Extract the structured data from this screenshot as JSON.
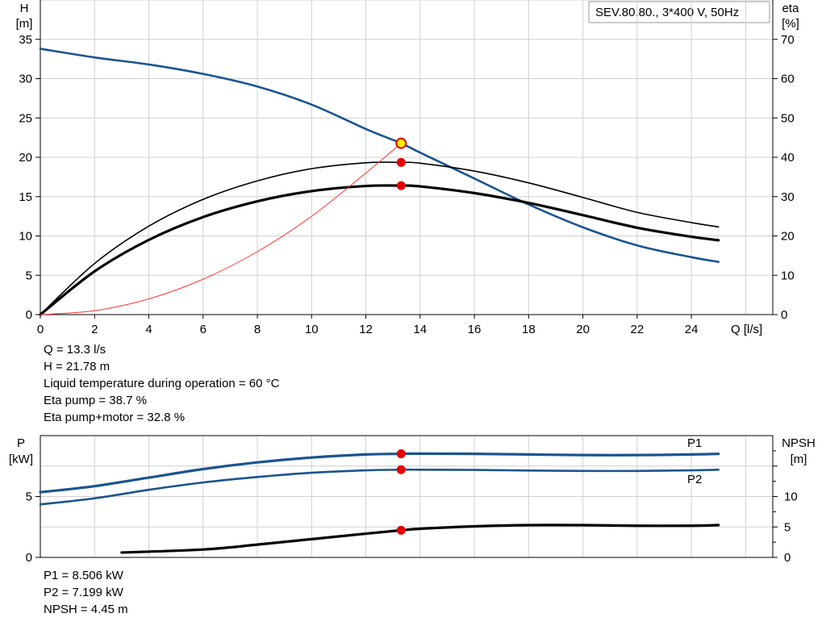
{
  "legend_box": "SEV.80.80., 3*400 V, 50Hz",
  "colors": {
    "blue": "#1a5490",
    "red_dot": "#e60000",
    "op_fill": "#ffee00",
    "thin_red": "#ff3333",
    "grid": "#d0d0d0"
  },
  "readout_top": {
    "lines": [
      "Q = 13.3 l/s",
      "H = 21.78 m",
      "Liquid temperature during operation = 60 °C",
      "Eta pump = 38.7 %",
      "Eta pump+motor = 32.8 %"
    ]
  },
  "readout_bottom": {
    "lines": [
      "P1 = 8.506 kW",
      "P2 = 7.199 kW",
      "NPSH = 4.45 m"
    ]
  },
  "chart_data": [
    {
      "type": "line",
      "x_label": "Q [l/s]",
      "y_left_label": [
        "H",
        "[m]"
      ],
      "y_right_label": [
        "eta",
        "[%]"
      ],
      "x_range": [
        0,
        27
      ],
      "y_left_range": [
        0,
        40
      ],
      "y_right_range": [
        0,
        80
      ],
      "x_ticks": [
        0,
        2,
        4,
        6,
        8,
        10,
        12,
        14,
        16,
        18,
        20,
        22,
        24
      ],
      "y_left_ticks": [
        0,
        5,
        10,
        15,
        20,
        25,
        30,
        35
      ],
      "y_right_ticks": [
        0,
        10,
        20,
        30,
        40,
        50,
        60,
        70
      ],
      "series": [
        {
          "axis": "left",
          "style": "blue",
          "x": [
            0,
            2,
            4,
            6,
            8,
            10,
            12,
            13.3,
            14,
            16,
            18,
            20,
            22,
            24,
            25
          ],
          "y": [
            33.8,
            32.7,
            31.8,
            30.6,
            29.0,
            26.7,
            23.6,
            21.78,
            20.6,
            17.3,
            14.0,
            11.1,
            8.8,
            7.3,
            6.7
          ]
        },
        {
          "axis": "right",
          "style": "black_thin",
          "x": [
            0,
            2,
            4,
            6,
            8,
            10,
            12,
            13.3,
            14,
            16,
            18,
            20,
            22,
            24,
            25
          ],
          "y": [
            0,
            13.0,
            22.5,
            29.3,
            34.0,
            37.1,
            38.6,
            38.7,
            38.5,
            36.5,
            33.5,
            29.8,
            26.0,
            23.4,
            22.3
          ]
        },
        {
          "axis": "right",
          "style": "black_thick",
          "x": [
            0,
            2,
            4,
            6,
            8,
            10,
            12,
            13.3,
            14,
            16,
            18,
            20,
            22,
            24,
            25
          ],
          "y": [
            0,
            11.0,
            19.0,
            24.8,
            28.8,
            31.4,
            32.7,
            32.8,
            32.6,
            30.9,
            28.4,
            25.3,
            22.1,
            19.8,
            18.9
          ]
        },
        {
          "axis": "left",
          "style": "red_thin",
          "x": [
            0,
            2,
            4,
            6,
            8,
            10,
            12,
            13.3
          ],
          "y": [
            0,
            0.5,
            2.0,
            4.5,
            8.0,
            12.5,
            18.0,
            21.78
          ]
        }
      ],
      "points": [
        {
          "axis": "left",
          "x": 13.3,
          "y": 21.78,
          "style": "operating"
        },
        {
          "axis": "right",
          "x": 13.3,
          "y": 38.7,
          "style": "red"
        },
        {
          "axis": "right",
          "x": 13.3,
          "y": 32.8,
          "style": "red"
        }
      ]
    },
    {
      "type": "line",
      "y_left_label": [
        "P",
        "[kW]"
      ],
      "y_right_label": [
        "NPSH",
        "[m]"
      ],
      "x_range": [
        0,
        27
      ],
      "y_left_range": [
        0,
        10
      ],
      "y_right_range": [
        0,
        20
      ],
      "y_left_ticks": [
        0,
        5
      ],
      "y_right_ticks": [
        0,
        5,
        10
      ],
      "series": [
        {
          "name": "P1",
          "axis": "left",
          "style": "blue_thick",
          "x": [
            0,
            2,
            4,
            6,
            8,
            10,
            12,
            13.3,
            14,
            16,
            18,
            20,
            22,
            24,
            25
          ],
          "y": [
            5.35,
            5.85,
            6.55,
            7.25,
            7.8,
            8.2,
            8.45,
            8.506,
            8.52,
            8.5,
            8.45,
            8.4,
            8.4,
            8.45,
            8.5
          ]
        },
        {
          "name": "P2",
          "axis": "left",
          "style": "blue",
          "x": [
            0,
            2,
            4,
            6,
            8,
            10,
            12,
            13.3,
            14,
            16,
            18,
            20,
            22,
            24,
            25
          ],
          "y": [
            4.35,
            4.85,
            5.55,
            6.15,
            6.6,
            6.95,
            7.15,
            7.199,
            7.2,
            7.18,
            7.13,
            7.1,
            7.1,
            7.15,
            7.2
          ]
        },
        {
          "axis": "right",
          "style": "black_thick",
          "x": [
            3,
            6,
            8,
            10,
            12,
            13.3,
            14,
            16,
            18,
            20,
            22,
            24,
            25
          ],
          "y": [
            0.8,
            1.3,
            2.1,
            3.0,
            3.9,
            4.45,
            4.7,
            5.1,
            5.3,
            5.3,
            5.2,
            5.2,
            5.3
          ]
        }
      ],
      "points": [
        {
          "axis": "left",
          "x": 13.3,
          "y": 8.506,
          "style": "red"
        },
        {
          "axis": "left",
          "x": 13.3,
          "y": 7.199,
          "style": "red"
        },
        {
          "axis": "right",
          "x": 13.3,
          "y": 4.45,
          "style": "red"
        }
      ]
    }
  ]
}
